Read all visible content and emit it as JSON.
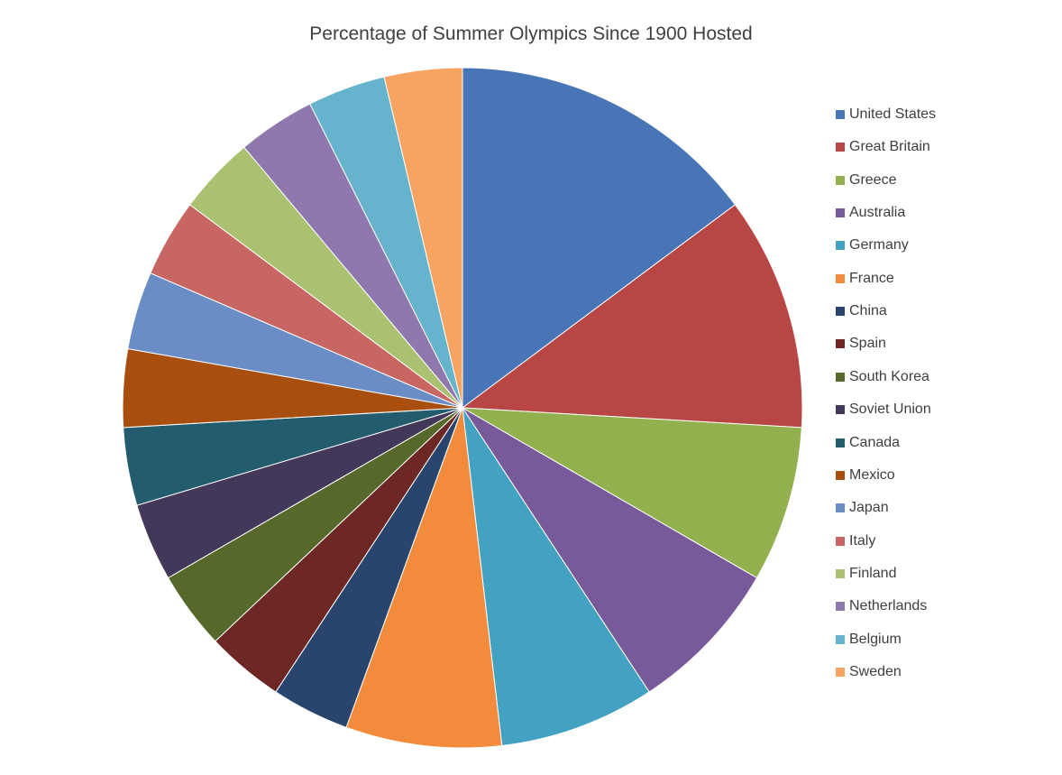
{
  "chart_data": {
    "type": "pie",
    "title": "Percentage of Summer Olympics Since 1900 Hosted",
    "legend_position": "right",
    "start_angle_deg": 0,
    "direction": "clockwise",
    "slices": [
      {
        "name": "United States",
        "value": 4,
        "color": "#4775B5"
      },
      {
        "name": "Great Britain",
        "value": 3,
        "color": "#B84644"
      },
      {
        "name": "Greece",
        "value": 2,
        "color": "#93B04E"
      },
      {
        "name": "Australia",
        "value": 2,
        "color": "#785A9A"
      },
      {
        "name": "Germany",
        "value": 2,
        "color": "#43A1C2"
      },
      {
        "name": "France",
        "value": 2,
        "color": "#F38B3C"
      },
      {
        "name": "China",
        "value": 1,
        "color": "#29456D"
      },
      {
        "name": "Spain",
        "value": 1,
        "color": "#6D2826"
      },
      {
        "name": "South Korea",
        "value": 1,
        "color": "#56692B"
      },
      {
        "name": "Soviet Union",
        "value": 1,
        "color": "#44385A"
      },
      {
        "name": "Canada",
        "value": 1,
        "color": "#235C6F"
      },
      {
        "name": "Mexico",
        "value": 1,
        "color": "#A84F10"
      },
      {
        "name": "Japan",
        "value": 1,
        "color": "#6A8DC6"
      },
      {
        "name": "Italy",
        "value": 1,
        "color": "#C86664"
      },
      {
        "name": "Finland",
        "value": 1,
        "color": "#A9C170"
      },
      {
        "name": "Netherlands",
        "value": 1,
        "color": "#8F78AE"
      },
      {
        "name": "Belgium",
        "value": 1,
        "color": "#65B3CC"
      },
      {
        "name": "Sweden",
        "value": 1,
        "color": "#F7A462"
      }
    ]
  }
}
